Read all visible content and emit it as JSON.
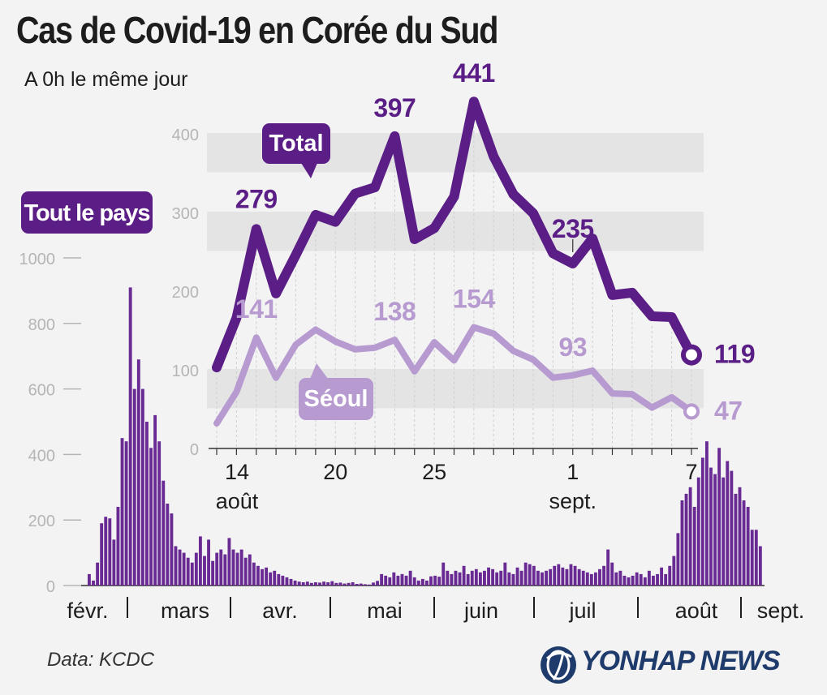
{
  "title": "Cas de Covid-19 en Corée du Sud",
  "subtitle": "A 0h le même jour",
  "source": "Data: KCDC",
  "brand": "YONHAP NEWS",
  "colors": {
    "background": "#f3f3f3",
    "dark_purple": "#5a1e86",
    "light_purple": "#b79ad0",
    "bar_purple": "#6a2a94",
    "band": "#e4e4e4",
    "text": "#1d1d1d",
    "axis_text": "#b5b5b5",
    "logo_blue": "#1f3b6b"
  },
  "chart_data": [
    {
      "id": "national",
      "type": "bar",
      "label": "Tout le pays",
      "ylim": [
        0,
        1000
      ],
      "yticks": [
        0,
        200,
        400,
        600,
        800,
        1000
      ],
      "month_labels": [
        "févr.",
        "mars",
        "avr.",
        "mai",
        "juin",
        "juil",
        "août",
        "sept."
      ],
      "values": [
        35,
        15,
        70,
        190,
        210,
        205,
        140,
        240,
        450,
        440,
        910,
        600,
        690,
        600,
        500,
        420,
        520,
        440,
        320,
        250,
        220,
        120,
        110,
        100,
        85,
        70,
        100,
        150,
        90,
        140,
        75,
        100,
        110,
        95,
        145,
        110,
        100,
        110,
        85,
        95,
        70,
        60,
        50,
        55,
        40,
        45,
        35,
        30,
        25,
        20,
        15,
        12,
        10,
        12,
        8,
        10,
        9,
        12,
        10,
        13,
        8,
        9,
        6,
        8,
        10,
        5,
        6,
        4,
        3,
        9,
        14,
        35,
        30,
        25,
        40,
        30,
        35,
        30,
        45,
        25,
        15,
        20,
        15,
        28,
        30,
        27,
        70,
        45,
        35,
        45,
        40,
        60,
        35,
        45,
        50,
        40,
        45,
        55,
        50,
        40,
        45,
        70,
        40,
        35,
        55,
        45,
        70,
        65,
        60,
        45,
        40,
        45,
        50,
        60,
        65,
        55,
        50,
        65,
        60,
        50,
        45,
        40,
        35,
        40,
        50,
        60,
        110,
        70,
        40,
        45,
        30,
        25,
        30,
        40,
        35,
        25,
        45,
        30,
        35,
        55,
        35,
        60,
        90,
        160,
        260,
        280,
        300,
        240,
        330,
        390,
        440,
        360,
        340,
        420,
        330,
        380,
        350,
        280,
        300,
        260,
        240,
        170,
        170,
        120
      ]
    },
    {
      "id": "inset",
      "type": "line",
      "ylim": [
        0,
        450
      ],
      "yticks": [
        0,
        100,
        200,
        300,
        400
      ],
      "x_tick_labels": [
        {
          "index": 0,
          "day": "14",
          "month": "août"
        },
        {
          "index": 6,
          "day": "20",
          "month": ""
        },
        {
          "index": 11,
          "day": "25",
          "month": ""
        },
        {
          "index": 18,
          "day": "1",
          "month": "sept."
        },
        {
          "index": 24,
          "day": "7",
          "month": ""
        }
      ],
      "series": [
        {
          "name": "Total",
          "values": [
            103,
            166,
            279,
            197,
            246,
            297,
            288,
            324,
            332,
            397,
            266,
            280,
            320,
            441,
            371,
            323,
            299,
            248,
            235,
            267,
            195,
            198,
            168,
            167,
            119
          ],
          "labels": [
            {
              "index": 2,
              "text": "279"
            },
            {
              "index": 9,
              "text": "397"
            },
            {
              "index": 13,
              "text": "441"
            },
            {
              "index": 18,
              "text": "235"
            },
            {
              "index": 24,
              "text": "119"
            }
          ]
        },
        {
          "name": "Séoul",
          "values": [
            32,
            72,
            141,
            90,
            132,
            151,
            136,
            126,
            128,
            138,
            98,
            135,
            112,
            154,
            146,
            124,
            113,
            90,
            93,
            99,
            70,
            69,
            52,
            65,
            47
          ],
          "labels": [
            {
              "index": 2,
              "text": "141"
            },
            {
              "index": 9,
              "text": "138"
            },
            {
              "index": 13,
              "text": "154"
            },
            {
              "index": 18,
              "text": "93"
            },
            {
              "index": 24,
              "text": "47"
            }
          ]
        }
      ]
    }
  ]
}
